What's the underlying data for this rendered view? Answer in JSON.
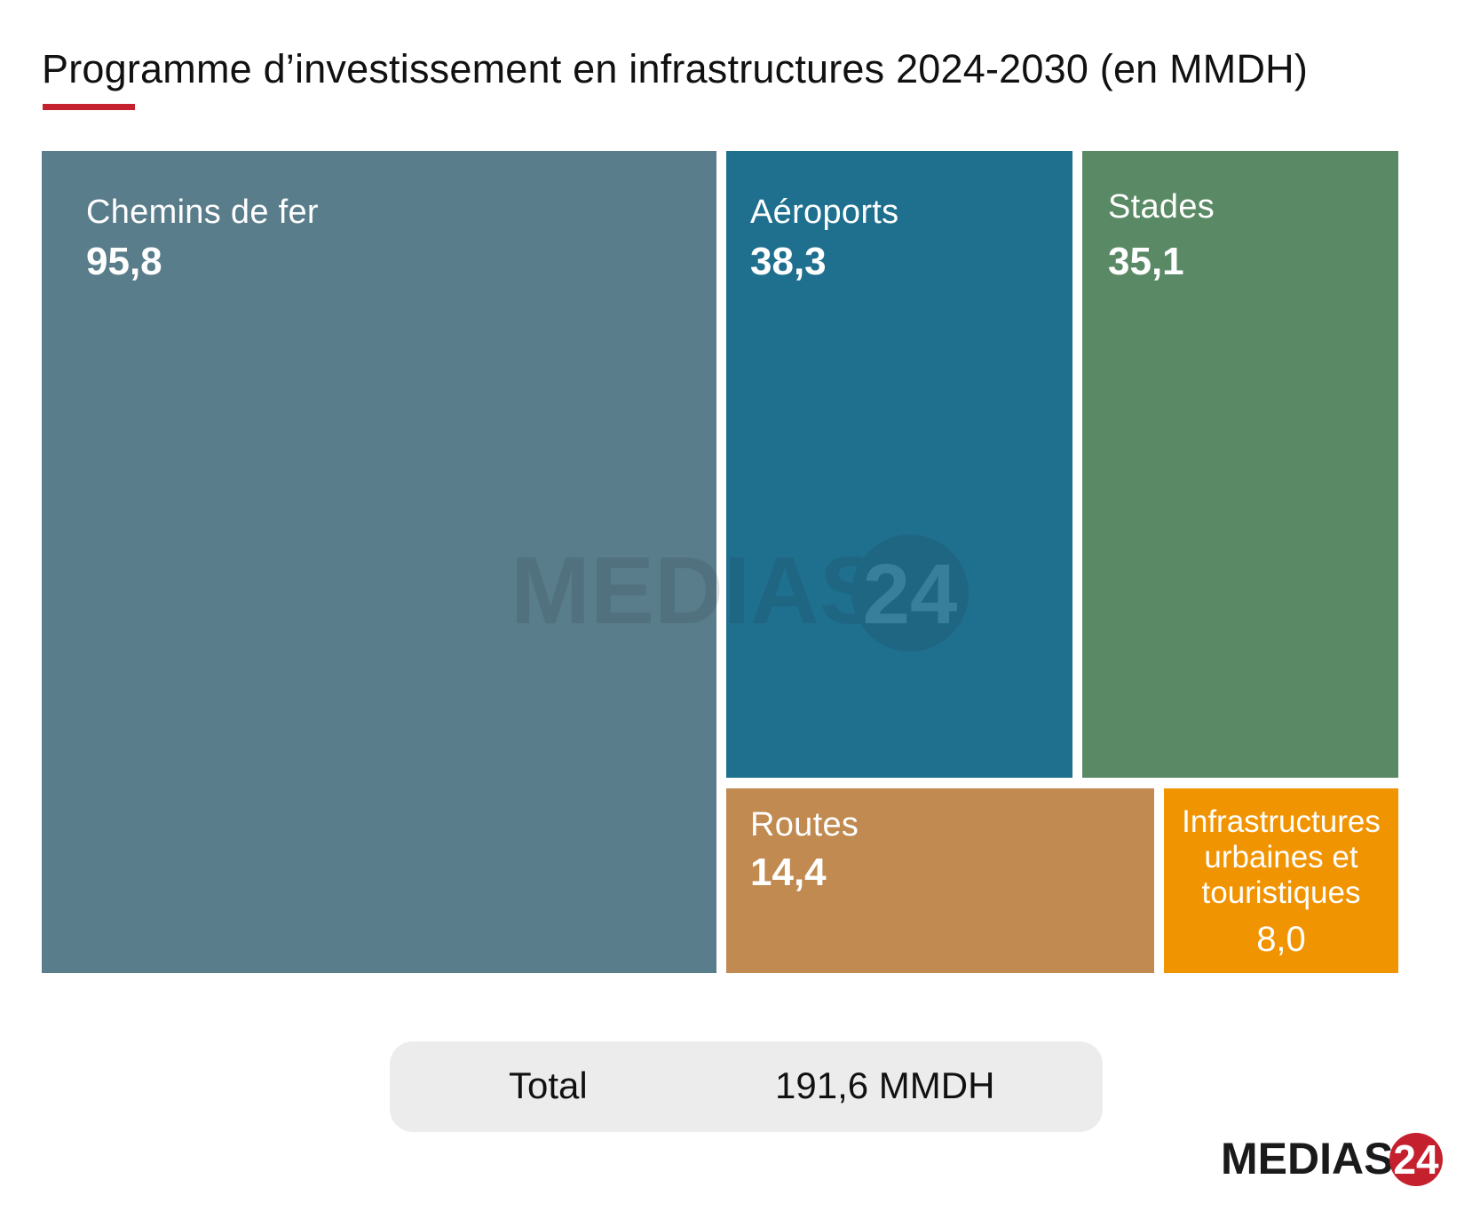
{
  "chart_data": {
    "type": "treemap",
    "title": "Programme d’investissement en infrastructures 2024-2030 (en MMDH)",
    "unit": "MMDH",
    "categories": [
      "Chemins de fer",
      "Aéroports",
      "Stades",
      "Routes",
      "Infrastructures urbaines et touristiques"
    ],
    "values": [
      95.8,
      38.3,
      35.1,
      14.4,
      8.0
    ],
    "display_values": [
      "95,8",
      "38,3",
      "35,1",
      "14,4",
      "8,0"
    ],
    "colors": [
      "#597d8b",
      "#1f708f",
      "#5a8a65",
      "#c08a51",
      "#f19402"
    ],
    "total_label": "Total",
    "total_value": "191,6 MMDH"
  },
  "tiles": [
    {
      "label": "Chemins de fer",
      "value": "95,8"
    },
    {
      "label": "Aéroports",
      "value": "38,3"
    },
    {
      "label": "Stades",
      "value": "35,1"
    },
    {
      "label": "Routes",
      "value": "14,4"
    },
    {
      "label_lines": [
        "Infrastructures",
        "urbaines et",
        "touristiques"
      ],
      "value": "8,0"
    }
  ],
  "watermark": {
    "text": "MEDIAS",
    "number": "24"
  },
  "logo": {
    "text": "MEDIAS",
    "number": "24",
    "brand_color": "#c5202d",
    "text_color": "#1a1a1a"
  }
}
